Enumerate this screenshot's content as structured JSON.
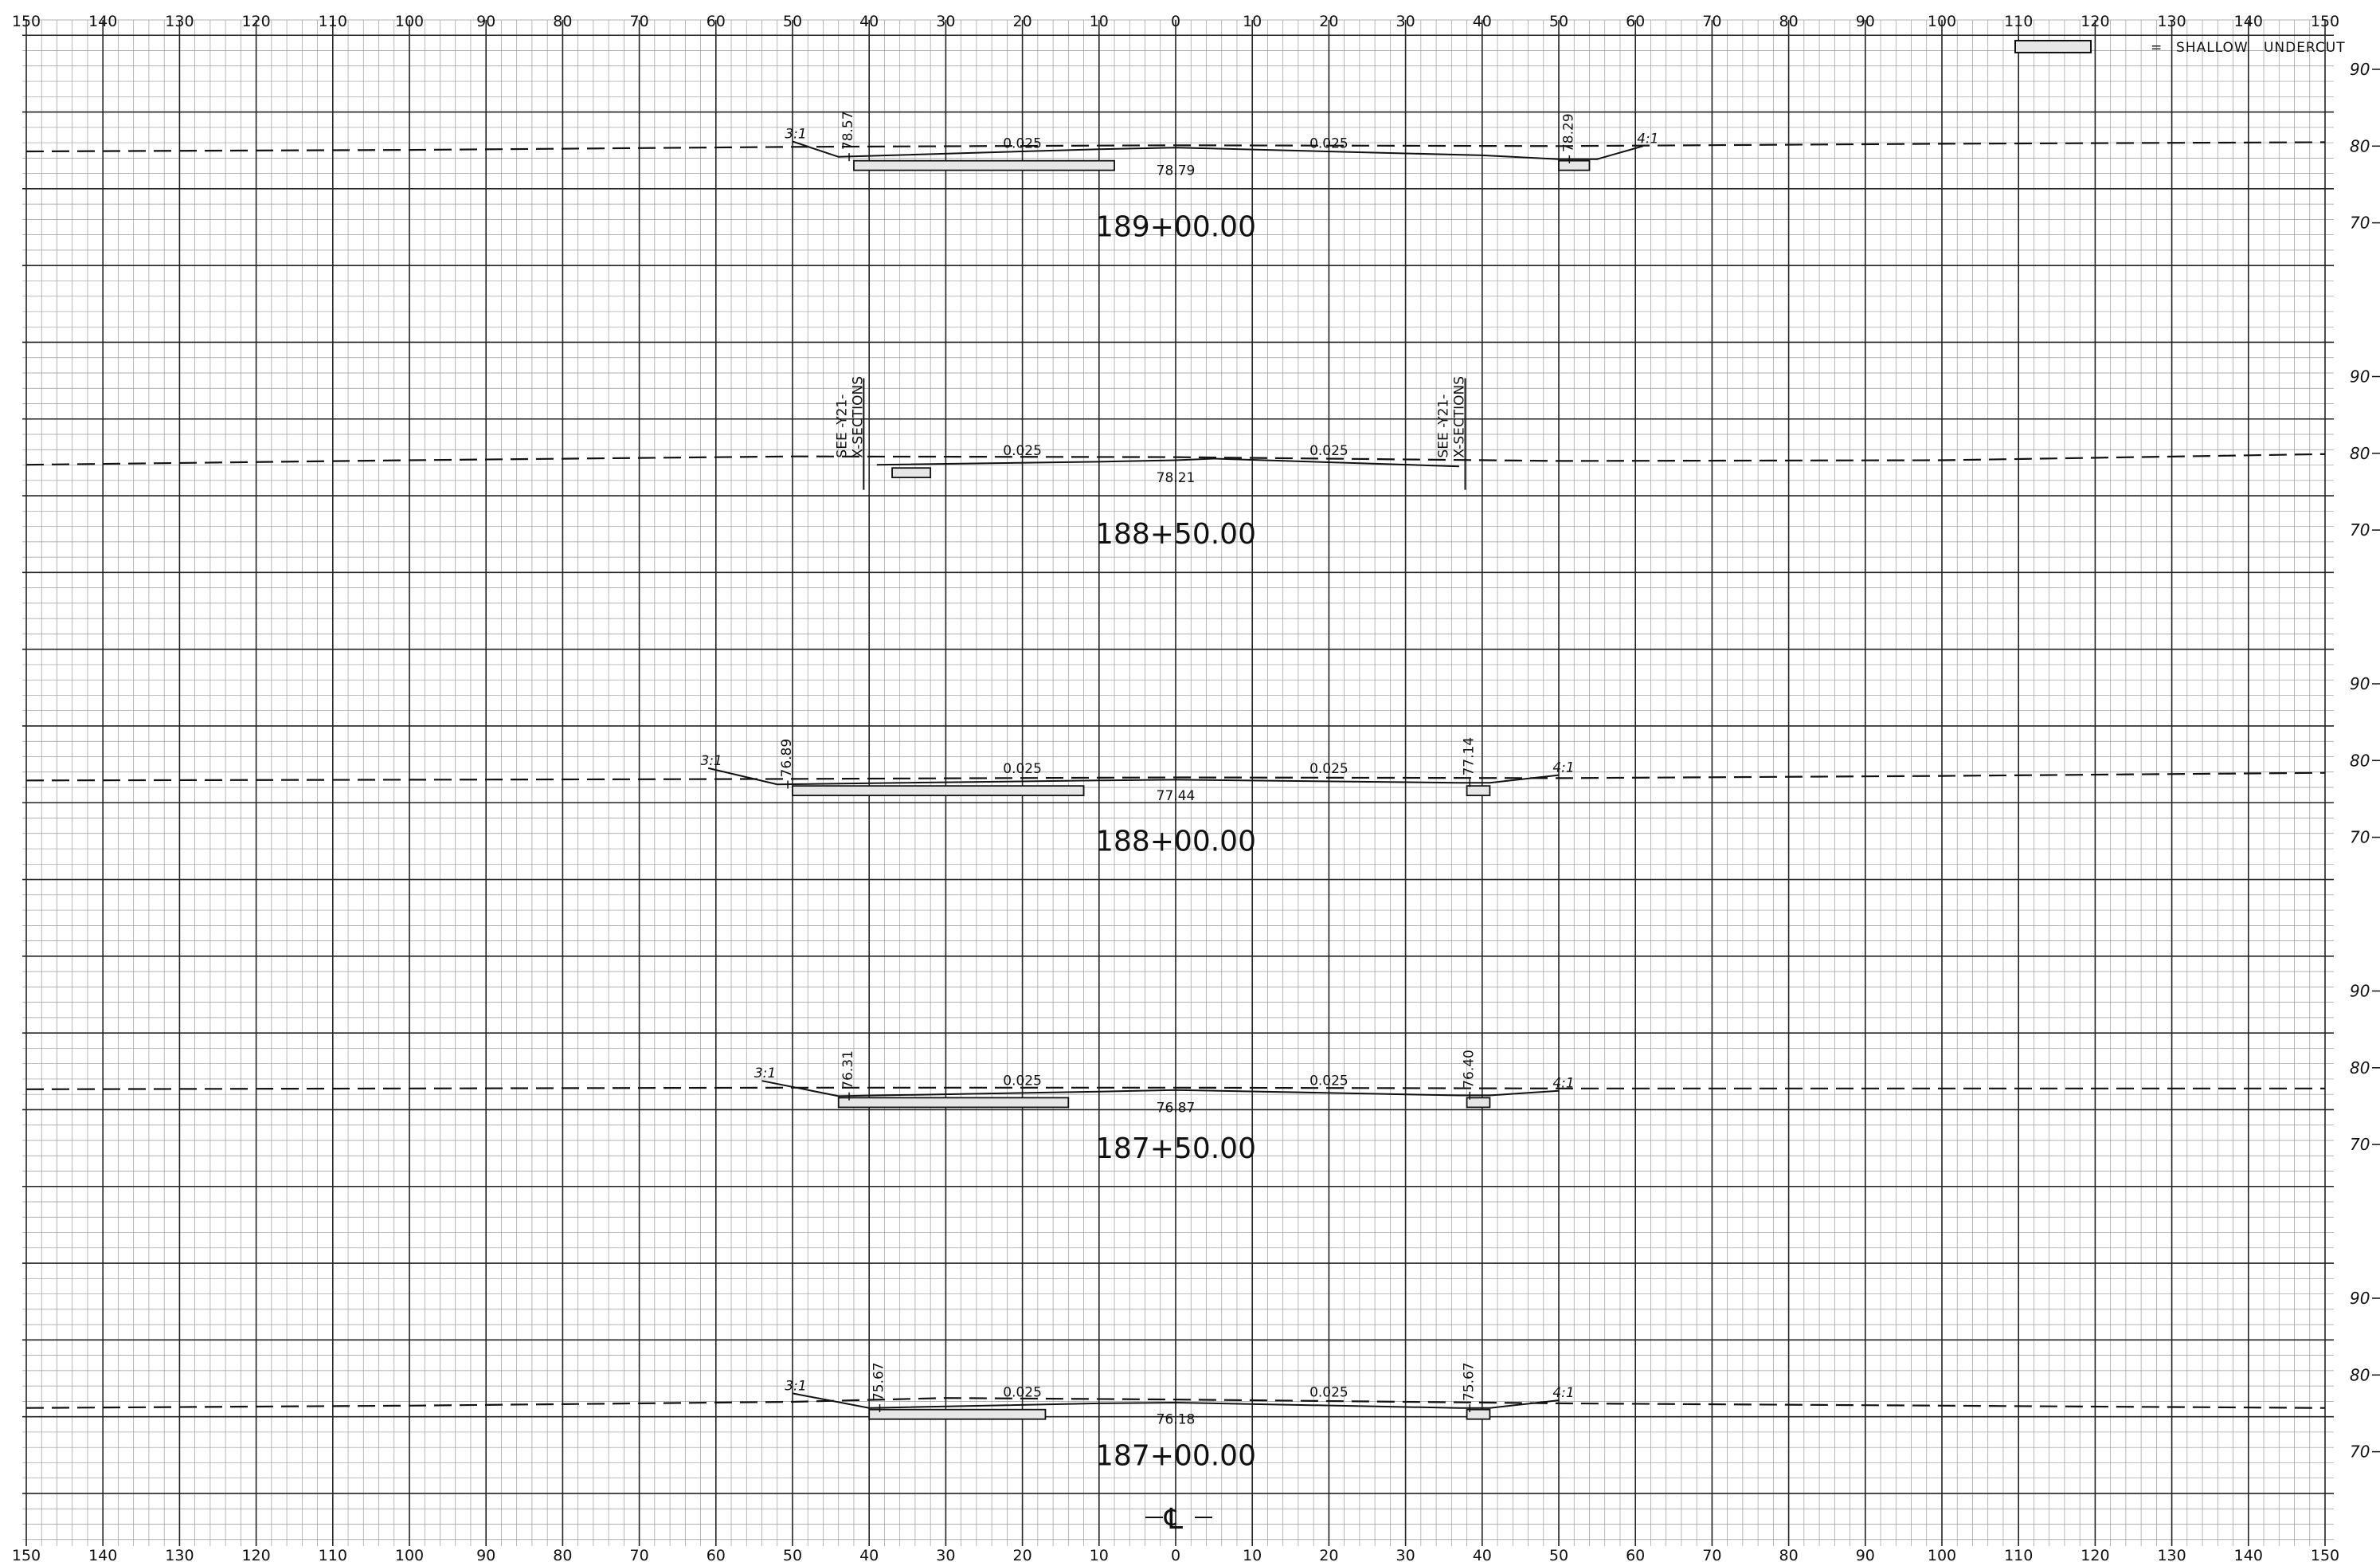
{
  "sheet": {
    "offset_ticks": [
      "150",
      "140",
      "130",
      "120",
      "110",
      "100",
      "90",
      "80",
      "70",
      "60",
      "50",
      "40",
      "30",
      "20",
      "10",
      "0",
      "10",
      "20",
      "30",
      "40",
      "50",
      "60",
      "70",
      "80",
      "90",
      "100",
      "110",
      "120",
      "130",
      "140",
      "150"
    ],
    "legend": {
      "equals": "=",
      "text": "SHALLOW   UNDERCUT"
    },
    "centerline_symbol": "℄"
  },
  "chart_data": [
    {
      "type": "cross-section",
      "station": "189+00.00",
      "elev_labels": [
        "90",
        "80",
        "70"
      ],
      "left_slope": "3:1",
      "right_slope": "4:1",
      "left_elev": "78.57",
      "right_elev": "78.29",
      "center_elev": "78.79",
      "left_cross_slope": "0.025",
      "right_cross_slope": "0.025",
      "ground": [
        [
          -150,
          79.3
        ],
        [
          -100,
          79.5
        ],
        [
          -50,
          79.9
        ],
        [
          0,
          80.1
        ],
        [
          50,
          80.0
        ],
        [
          100,
          80.3
        ],
        [
          150,
          80.5
        ]
      ],
      "design": [
        [
          -50,
          80.6
        ],
        [
          -44,
          78.6
        ],
        [
          -10,
          79.6
        ],
        [
          0,
          79.8
        ],
        [
          40,
          78.8
        ],
        [
          50,
          78.3
        ],
        [
          55,
          78.3
        ],
        [
          61,
          80.0
        ]
      ],
      "undercut": [
        [
          -42,
          -8
        ],
        [
          50,
          54
        ]
      ]
    },
    {
      "type": "cross-section",
      "station": "188+50.00",
      "elev_labels": [
        "90",
        "80",
        "70"
      ],
      "left_note": [
        "SEE -Y21-",
        "X-SECTIONS"
      ],
      "right_note": [
        "SEE -Y21-",
        "X-SECTIONS"
      ],
      "center_elev": "78.21",
      "left_cross_slope": "0.025",
      "right_cross_slope": "0.025",
      "ground": [
        [
          -150,
          78.5
        ],
        [
          -100,
          79.1
        ],
        [
          -50,
          79.6
        ],
        [
          0,
          79.5
        ],
        [
          50,
          79.0
        ],
        [
          100,
          79.1
        ],
        [
          150,
          79.9
        ]
      ],
      "design": [
        [
          -39,
          78.5
        ],
        [
          -10,
          78.9
        ],
        [
          0,
          79.1
        ],
        [
          5,
          79.3
        ],
        [
          37,
          78.3
        ]
      ],
      "undercut": [
        [
          -37,
          -32
        ]
      ]
    },
    {
      "type": "cross-section",
      "station": "188+00.00",
      "elev_labels": [
        "90",
        "80",
        "70"
      ],
      "left_slope": "3:1",
      "right_slope": "4:1",
      "left_elev": "76.89",
      "right_elev": "77.14",
      "center_elev": "77.44",
      "left_cross_slope": "0.025",
      "right_cross_slope": "0.025",
      "ground": [
        [
          -150,
          77.4
        ],
        [
          -100,
          77.5
        ],
        [
          -50,
          77.6
        ],
        [
          0,
          77.8
        ],
        [
          50,
          77.7
        ],
        [
          100,
          78.0
        ],
        [
          150,
          78.4
        ]
      ],
      "design": [
        [
          -61,
          79.0
        ],
        [
          -52,
          76.9
        ],
        [
          -10,
          77.4
        ],
        [
          0,
          77.5
        ],
        [
          37,
          77.1
        ],
        [
          41,
          77.1
        ],
        [
          50,
          78.1
        ]
      ],
      "undercut": [
        [
          -50,
          -12
        ],
        [
          38,
          41
        ]
      ]
    },
    {
      "type": "cross-section",
      "station": "187+50.00",
      "elev_labels": [
        "90",
        "80",
        "70"
      ],
      "left_slope": "3:1",
      "right_slope": "4:1",
      "left_elev": "76.31",
      "right_elev": "76.40",
      "center_elev": "76.87",
      "left_cross_slope": "0.025",
      "right_cross_slope": "0.025",
      "ground": [
        [
          -150,
          77.2
        ],
        [
          -100,
          77.3
        ],
        [
          -50,
          77.4
        ],
        [
          0,
          77.4
        ],
        [
          50,
          77.3
        ],
        [
          100,
          77.3
        ],
        [
          150,
          77.3
        ]
      ],
      "design": [
        [
          -54,
          78.3
        ],
        [
          -44,
          76.3
        ],
        [
          -10,
          76.9
        ],
        [
          0,
          77.1
        ],
        [
          37,
          76.4
        ],
        [
          41,
          76.4
        ],
        [
          50,
          77.0
        ]
      ],
      "undercut": [
        [
          -44,
          -14
        ],
        [
          38,
          41
        ]
      ]
    },
    {
      "type": "cross-section",
      "station": "187+00.00",
      "elev_labels": [
        "90",
        "80",
        "70"
      ],
      "left_slope": "3:1",
      "right_slope": "4:1",
      "left_elev": "75.67",
      "right_elev": "75.67",
      "center_elev": "76.18",
      "left_cross_slope": "0.025",
      "right_cross_slope": "0.025",
      "ground": [
        [
          -150,
          75.7
        ],
        [
          -100,
          76.0
        ],
        [
          -50,
          76.5
        ],
        [
          -30,
          77.0
        ],
        [
          0,
          76.8
        ],
        [
          50,
          76.3
        ],
        [
          100,
          76.0
        ],
        [
          150,
          75.7
        ]
      ],
      "design": [
        [
          -50,
          77.6
        ],
        [
          -40,
          75.7
        ],
        [
          -10,
          76.3
        ],
        [
          0,
          76.4
        ],
        [
          37,
          75.7
        ],
        [
          41,
          75.7
        ],
        [
          50,
          76.7
        ]
      ],
      "undercut": [
        [
          -40,
          -17
        ],
        [
          38,
          41
        ]
      ]
    }
  ]
}
